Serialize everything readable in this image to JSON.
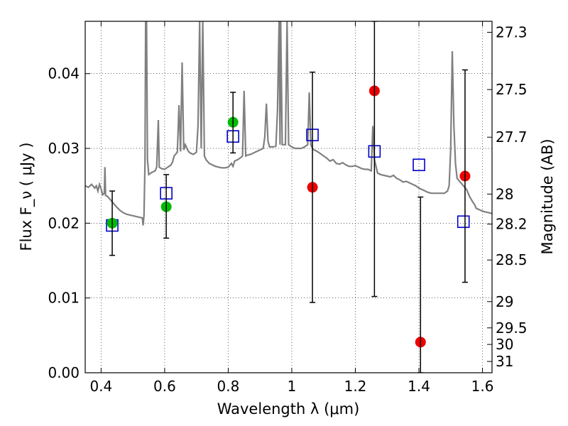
{
  "chart_data": {
    "type": "scatter",
    "xlabel": "Wavelength  λ (μm)",
    "ylabel": "Flux  F_ν  ( μJy )",
    "y2label": "Magnitude (AB)",
    "xlim": [
      0.35,
      1.63
    ],
    "ylim": [
      0.0,
      0.047
    ],
    "grid": true,
    "x_ticks": [
      {
        "value": 0.4,
        "label": "0.4"
      },
      {
        "value": 0.6,
        "label": "0.6"
      },
      {
        "value": 0.8,
        "label": "0.8"
      },
      {
        "value": 1.0,
        "label": "1"
      },
      {
        "value": 1.2,
        "label": "1.2"
      },
      {
        "value": 1.4,
        "label": "1.4"
      },
      {
        "value": 1.6,
        "label": "1.6"
      }
    ],
    "y_ticks": [
      {
        "value": 0.0,
        "label": "0.00"
      },
      {
        "value": 0.01,
        "label": "0.01"
      },
      {
        "value": 0.02,
        "label": "0.02"
      },
      {
        "value": 0.03,
        "label": "0.03"
      },
      {
        "value": 0.04,
        "label": "0.04"
      }
    ],
    "y2_ticks": [
      {
        "value": 27.3,
        "label": "27.3"
      },
      {
        "value": 27.5,
        "label": "27.5"
      },
      {
        "value": 27.7,
        "label": "27.7"
      },
      {
        "value": 28.0,
        "label": "28"
      },
      {
        "value": 28.2,
        "label": "28.2"
      },
      {
        "value": 28.5,
        "label": "28.5"
      },
      {
        "value": 29.0,
        "label": "29"
      },
      {
        "value": 29.5,
        "label": "29.5"
      },
      {
        "value": 30.0,
        "label": "30"
      },
      {
        "value": 31.0,
        "label": "31"
      }
    ],
    "series": [
      {
        "kind": "line",
        "color": "#808080",
        "points": [
          [
            0.35,
            0.025
          ],
          [
            0.36,
            0.0248
          ],
          [
            0.37,
            0.0252
          ],
          [
            0.38,
            0.0247
          ],
          [
            0.385,
            0.025
          ],
          [
            0.39,
            0.0243
          ],
          [
            0.395,
            0.0252
          ],
          [
            0.4,
            0.0246
          ],
          [
            0.405,
            0.0238
          ],
          [
            0.41,
            0.024
          ],
          [
            0.412,
            0.0275
          ],
          [
            0.414,
            0.0237
          ],
          [
            0.42,
            0.0236
          ],
          [
            0.43,
            0.0231
          ],
          [
            0.44,
            0.0226
          ],
          [
            0.45,
            0.0221
          ],
          [
            0.46,
            0.0217
          ],
          [
            0.47,
            0.0214
          ],
          [
            0.48,
            0.0212
          ],
          [
            0.49,
            0.0211
          ],
          [
            0.5,
            0.021
          ],
          [
            0.51,
            0.0209
          ],
          [
            0.52,
            0.0208
          ],
          [
            0.53,
            0.0207
          ],
          [
            0.532,
            0.0197
          ],
          [
            0.535,
            0.021
          ],
          [
            0.538,
            0.028
          ],
          [
            0.54,
            0.047
          ],
          [
            0.543,
            0.047
          ],
          [
            0.546,
            0.0285
          ],
          [
            0.55,
            0.0265
          ],
          [
            0.56,
            0.0268
          ],
          [
            0.57,
            0.027
          ],
          [
            0.575,
            0.0275
          ],
          [
            0.58,
            0.0338
          ],
          [
            0.583,
            0.0275
          ],
          [
            0.59,
            0.0273
          ],
          [
            0.6,
            0.0272
          ],
          [
            0.61,
            0.0275
          ],
          [
            0.62,
            0.0278
          ],
          [
            0.625,
            0.0282
          ],
          [
            0.63,
            0.029
          ],
          [
            0.64,
            0.0295
          ],
          [
            0.645,
            0.0358
          ],
          [
            0.65,
            0.0296
          ],
          [
            0.655,
            0.0415
          ],
          [
            0.66,
            0.0298
          ],
          [
            0.665,
            0.0305
          ],
          [
            0.67,
            0.03
          ],
          [
            0.675,
            0.0296
          ],
          [
            0.68,
            0.0294
          ],
          [
            0.69,
            0.0292
          ],
          [
            0.7,
            0.0295
          ],
          [
            0.705,
            0.033
          ],
          [
            0.71,
            0.047
          ],
          [
            0.715,
            0.03
          ],
          [
            0.72,
            0.047
          ],
          [
            0.725,
            0.029
          ],
          [
            0.73,
            0.0285
          ],
          [
            0.74,
            0.028
          ],
          [
            0.75,
            0.0278
          ],
          [
            0.76,
            0.0276
          ],
          [
            0.77,
            0.0275
          ],
          [
            0.78,
            0.0274
          ],
          [
            0.79,
            0.0274
          ],
          [
            0.8,
            0.0275
          ],
          [
            0.81,
            0.028
          ],
          [
            0.815,
            0.0276
          ],
          [
            0.82,
            0.0283
          ],
          [
            0.83,
            0.0285
          ],
          [
            0.84,
            0.0288
          ],
          [
            0.845,
            0.029
          ],
          [
            0.85,
            0.0377
          ],
          [
            0.855,
            0.029
          ],
          [
            0.86,
            0.0291
          ],
          [
            0.87,
            0.0292
          ],
          [
            0.88,
            0.0294
          ],
          [
            0.89,
            0.0296
          ],
          [
            0.9,
            0.0298
          ],
          [
            0.91,
            0.03
          ],
          [
            0.915,
            0.0315
          ],
          [
            0.92,
            0.036
          ],
          [
            0.925,
            0.031
          ],
          [
            0.93,
            0.0302
          ],
          [
            0.94,
            0.0302
          ],
          [
            0.95,
            0.0303
          ],
          [
            0.955,
            0.035
          ],
          [
            0.96,
            0.047
          ],
          [
            0.963,
            0.0305
          ],
          [
            0.965,
            0.047
          ],
          [
            0.97,
            0.0305
          ],
          [
            0.98,
            0.0305
          ],
          [
            0.985,
            0.047
          ],
          [
            0.99,
            0.0305
          ],
          [
            1.0,
            0.0302
          ],
          [
            1.01,
            0.03
          ],
          [
            1.02,
            0.03
          ],
          [
            1.03,
            0.03
          ],
          [
            1.04,
            0.0302
          ],
          [
            1.05,
            0.0305
          ],
          [
            1.055,
            0.0375
          ],
          [
            1.06,
            0.0305
          ],
          [
            1.065,
            0.03
          ],
          [
            1.07,
            0.0298
          ],
          [
            1.08,
            0.0296
          ],
          [
            1.09,
            0.0293
          ],
          [
            1.1,
            0.029
          ],
          [
            1.11,
            0.0287
          ],
          [
            1.12,
            0.0283
          ],
          [
            1.13,
            0.0285
          ],
          [
            1.14,
            0.028
          ],
          [
            1.15,
            0.0279
          ],
          [
            1.16,
            0.0281
          ],
          [
            1.17,
            0.0278
          ],
          [
            1.18,
            0.0276
          ],
          [
            1.19,
            0.0276
          ],
          [
            1.2,
            0.0277
          ],
          [
            1.21,
            0.0275
          ],
          [
            1.22,
            0.0273
          ],
          [
            1.23,
            0.0272
          ],
          [
            1.24,
            0.0272
          ],
          [
            1.25,
            0.027
          ],
          [
            1.255,
            0.033
          ],
          [
            1.26,
            0.0285
          ],
          [
            1.27,
            0.0267
          ],
          [
            1.28,
            0.0265
          ],
          [
            1.29,
            0.0264
          ],
          [
            1.3,
            0.0263
          ],
          [
            1.31,
            0.0262
          ],
          [
            1.32,
            0.0264
          ],
          [
            1.33,
            0.026
          ],
          [
            1.34,
            0.0258
          ],
          [
            1.35,
            0.0255
          ],
          [
            1.36,
            0.0256
          ],
          [
            1.37,
            0.0254
          ],
          [
            1.38,
            0.0252
          ],
          [
            1.39,
            0.025
          ],
          [
            1.4,
            0.0247
          ],
          [
            1.41,
            0.0245
          ],
          [
            1.42,
            0.0243
          ],
          [
            1.43,
            0.0241
          ],
          [
            1.44,
            0.024
          ],
          [
            1.45,
            0.024
          ],
          [
            1.46,
            0.024
          ],
          [
            1.47,
            0.024
          ],
          [
            1.48,
            0.024
          ],
          [
            1.49,
            0.0243
          ],
          [
            1.495,
            0.025
          ],
          [
            1.5,
            0.03
          ],
          [
            1.505,
            0.043
          ],
          [
            1.51,
            0.033
          ],
          [
            1.515,
            0.028
          ],
          [
            1.52,
            0.026
          ],
          [
            1.53,
            0.0255
          ],
          [
            1.54,
            0.025
          ],
          [
            1.55,
            0.0245
          ],
          [
            1.555,
            0.024
          ],
          [
            1.56,
            0.0235
          ],
          [
            1.57,
            0.0228
          ],
          [
            1.575,
            0.0225
          ],
          [
            1.58,
            0.022
          ],
          [
            1.59,
            0.0218
          ],
          [
            1.6,
            0.0216
          ],
          [
            1.61,
            0.0215
          ],
          [
            1.62,
            0.0214
          ],
          [
            1.63,
            0.0213
          ]
        ]
      },
      {
        "kind": "open-square",
        "color": "#0000cc",
        "points": [
          [
            0.435,
            0.0197
          ],
          [
            0.605,
            0.024
          ],
          [
            0.815,
            0.0316
          ],
          [
            1.065,
            0.0318
          ],
          [
            1.26,
            0.0296
          ],
          [
            1.4,
            0.0278
          ],
          [
            1.54,
            0.0202
          ]
        ]
      },
      {
        "kind": "filled-circle",
        "color": "#00bb00",
        "points": [
          [
            0.435,
            0.02
          ],
          [
            0.605,
            0.0222
          ],
          [
            0.815,
            0.0335
          ]
        ]
      },
      {
        "kind": "filled-circle",
        "color": "#ee0000",
        "points": [
          [
            1.065,
            0.0248
          ],
          [
            1.26,
            0.0377
          ],
          [
            1.405,
            0.0041
          ],
          [
            1.545,
            0.0263
          ]
        ]
      },
      {
        "kind": "errorbar",
        "color": "#000000",
        "points": [
          {
            "x": 0.435,
            "low": 0.0157,
            "high": 0.0243
          },
          {
            "x": 0.605,
            "low": 0.018,
            "high": 0.0265
          },
          {
            "x": 0.815,
            "low": 0.0294,
            "high": 0.0375
          },
          {
            "x": 1.065,
            "low": 0.0094,
            "high": 0.0402
          },
          {
            "x": 1.26,
            "low": 0.0102,
            "high": 0.047
          },
          {
            "x": 1.405,
            "low": 0.0,
            "high": 0.0235
          },
          {
            "x": 1.545,
            "low": 0.0121,
            "high": 0.0405
          }
        ]
      }
    ]
  }
}
